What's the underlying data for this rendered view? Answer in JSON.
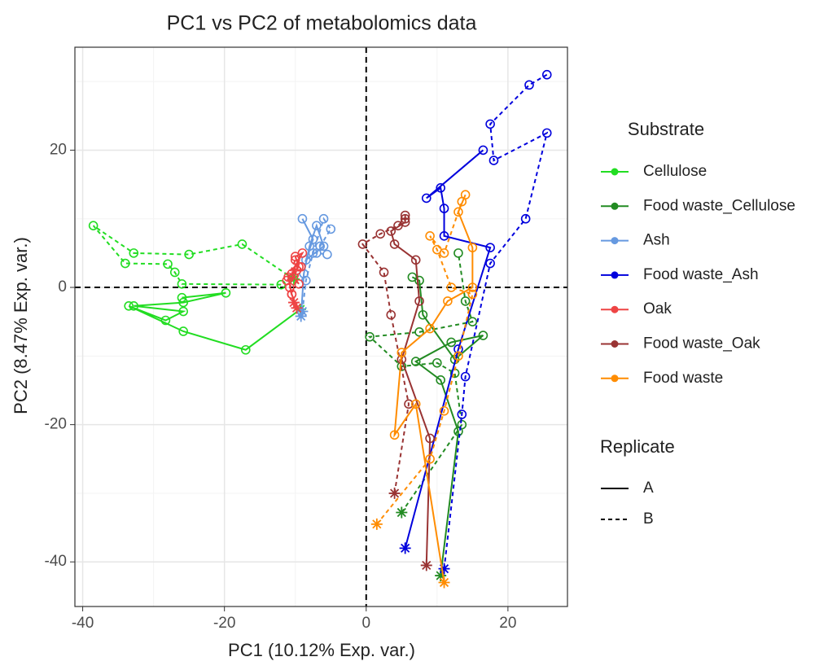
{
  "chart_data": {
    "type": "trajectory",
    "title": "PC1 vs PC2 of metabolomics data",
    "xlabel": "PC1 (10.12% Exp. var.)",
    "ylabel": "PC2 (8.47% Exp. var.)",
    "xlim": [
      -41.1,
      28.4
    ],
    "ylim": [
      -46.5,
      35
    ],
    "xticks": [
      -40,
      -20,
      0,
      20
    ],
    "yticks": [
      -40,
      -20,
      0,
      20
    ],
    "minor_xticks": [
      -30,
      -10,
      10
    ],
    "minor_yticks": [
      -30,
      -10,
      10,
      30
    ],
    "grid": true,
    "ref_lines": {
      "x": 0,
      "y": 0
    },
    "legend_title": "Substrate",
    "replicate_title": "Replicate",
    "replicates": [
      "A",
      "B"
    ],
    "replicate_dash": [
      "none",
      "5,4"
    ],
    "series": [
      {
        "name": "Cellulose",
        "color": "#22dd22",
        "lines": [
          {
            "x": [
              -9.3,
              -17,
              -25.8,
              -33.5,
              -28.3,
              -25.8,
              -32.8,
              -25.8,
              -19.8,
              -26
            ],
            "y": [
              -3.2,
              -9.1,
              -6.4,
              -2.7,
              -4.8,
              -3.5,
              -2.7,
              -2.2,
              -0.8,
              -1.5
            ]
          },
          {
            "x": [
              -10.2,
              -17.5,
              -25,
              -32.8,
              -38.5,
              -34,
              -28,
              -27,
              -26,
              -12
            ],
            "y": [
              1.2,
              6.3,
              4.8,
              5,
              9,
              3.5,
              3.4,
              2.2,
              0.5,
              0.4
            ]
          }
        ]
      },
      {
        "name": "Food waste_Cellulose",
        "color": "#228b22",
        "lines": [
          {
            "x": [
              10.5,
              13,
              10.5,
              7,
              12,
              16.5,
              12.5,
              8,
              7.5,
              6.5
            ],
            "y": [
              -42,
              -21,
              -13.5,
              -10.8,
              -8,
              -7,
              -10.5,
              -4,
              1,
              1.5
            ]
          },
          {
            "x": [
              5,
              13.5,
              12.5,
              10,
              5,
              0.5,
              7.5,
              15,
              14,
              13
            ],
            "y": [
              -32.8,
              -20,
              -12.5,
              -11,
              -11.5,
              -7.2,
              -6.5,
              -5,
              -2,
              5
            ]
          }
        ]
      },
      {
        "name": "Ash",
        "color": "#6699e0",
        "lines": [
          {
            "x": [
              -9.2,
              -8.8,
              -8,
              -7,
              -6,
              -8.5,
              -7.5,
              -9
            ],
            "y": [
              -4.2,
              2,
              6,
              9,
              6,
              4,
              7,
              10
            ]
          },
          {
            "x": [
              -9,
              -8.5,
              -7.5,
              -6,
              -5,
              -6.5,
              -7,
              -5.5
            ],
            "y": [
              -3.5,
              1,
              5,
              10,
              8.5,
              6,
              5,
              4.8
            ]
          }
        ]
      },
      {
        "name": "Food waste_Ash",
        "color": "#0000dd",
        "lines": [
          {
            "x": [
              5.5,
              13,
              17.5,
              11,
              11,
              10.5,
              8.5,
              16.5
            ],
            "y": [
              -38,
              -9,
              5.8,
              7.5,
              11.5,
              14.5,
              13,
              20
            ]
          },
          {
            "x": [
              11,
              13.5,
              14,
              17.5,
              22.5,
              25.5,
              18,
              17.5,
              23,
              25.5
            ],
            "y": [
              -41,
              -18.5,
              -13,
              3.5,
              10,
              22.5,
              18.5,
              23.8,
              29.5,
              31
            ]
          }
        ]
      },
      {
        "name": "Oak",
        "color": "#ee4444",
        "lines": [
          {
            "x": [
              -9.8,
              -10.5,
              -11,
              -9.5,
              -10,
              -9,
              -10.5,
              -9.5
            ],
            "y": [
              -3,
              -1,
              1.5,
              3,
              4.5,
              5,
              2,
              0.5
            ]
          },
          {
            "x": [
              -10.2,
              -10.8,
              -9.8,
              -11.2,
              -10,
              -9.2,
              -10.5
            ],
            "y": [
              -2.2,
              0,
              2.5,
              1,
              4,
              3,
              -1
            ]
          }
        ]
      },
      {
        "name": "Food waste_Oak",
        "color": "#993333",
        "lines": [
          {
            "x": [
              8.5,
              9,
              5,
              7.5,
              7,
              4,
              3.5,
              5.5,
              5.5
            ],
            "y": [
              -40.5,
              -22,
              -10.5,
              -2,
              4,
              6.3,
              8.2,
              9.5,
              10.5
            ]
          },
          {
            "x": [
              4,
              6,
              3.5,
              2.5,
              -0.5,
              2,
              4.5,
              5.5
            ],
            "y": [
              -30,
              -17,
              -4,
              2.2,
              6.3,
              7.8,
              9,
              10
            ]
          }
        ]
      },
      {
        "name": "Food waste",
        "color": "#ff8c00",
        "lines": [
          {
            "x": [
              11,
              7,
              4,
              5,
              9,
              11.5,
              15,
              15,
              13,
              14
            ],
            "y": [
              -43,
              -17,
              -21.5,
              -9.5,
              -6,
              -2,
              0,
              5.8,
              11,
              13.5
            ]
          },
          {
            "x": [
              1.5,
              9,
              11,
              13,
              15,
              12,
              10,
              9,
              11,
              13.5
            ],
            "y": [
              -34.5,
              -25,
              -18,
              -10,
              -1,
              0,
              5.5,
              7.5,
              5,
              12.5
            ]
          }
        ]
      }
    ]
  }
}
